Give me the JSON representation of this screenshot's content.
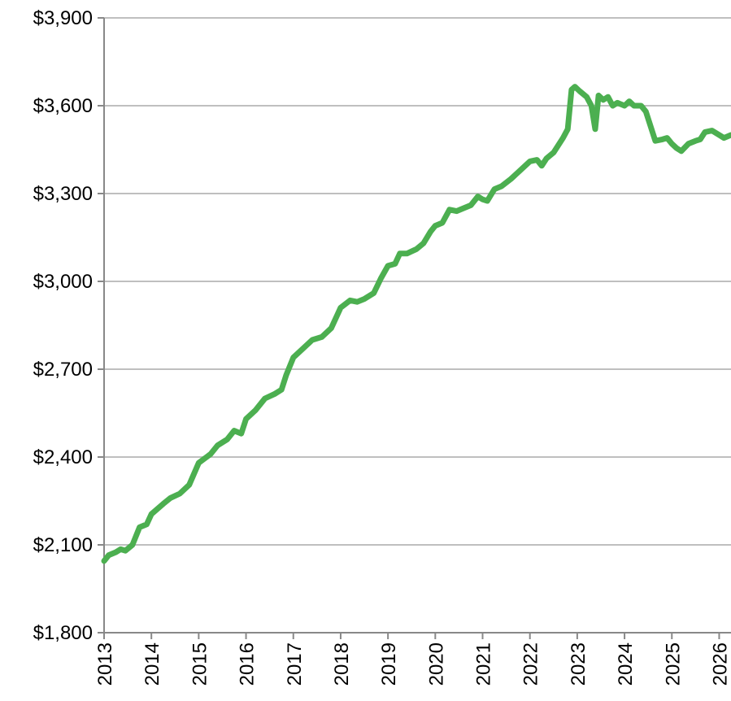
{
  "chart_data": {
    "type": "line",
    "color": "#4caf50",
    "x": [
      2013.0,
      2013.1,
      2013.25,
      2013.35,
      2013.45,
      2013.6,
      2013.75,
      2013.9,
      2014.0,
      2014.25,
      2014.4,
      2014.6,
      2014.8,
      2015.0,
      2015.25,
      2015.4,
      2015.6,
      2015.75,
      2015.9,
      2016.0,
      2016.2,
      2016.4,
      2016.6,
      2016.75,
      2016.85,
      2017.0,
      2017.2,
      2017.4,
      2017.6,
      2017.8,
      2018.0,
      2018.2,
      2018.35,
      2018.5,
      2018.7,
      2018.85,
      2019.0,
      2019.15,
      2019.25,
      2019.4,
      2019.6,
      2019.75,
      2019.9,
      2020.0,
      2020.15,
      2020.3,
      2020.45,
      2020.6,
      2020.75,
      2020.9,
      2021.0,
      2021.1,
      2021.25,
      2021.4,
      2021.6,
      2021.8,
      2022.0,
      2022.15,
      2022.25,
      2022.35,
      2022.5,
      2022.7,
      2022.8,
      2022.88,
      2022.95,
      2023.05,
      2023.2,
      2023.3,
      2023.38,
      2023.45,
      2023.55,
      2023.65,
      2023.75,
      2023.85,
      2024.0,
      2024.1,
      2024.2,
      2024.35,
      2024.45,
      2024.55,
      2024.65,
      2024.8,
      2024.9,
      2025.0,
      2025.1,
      2025.2,
      2025.35,
      2025.5,
      2025.6,
      2025.7,
      2025.85,
      2026.0,
      2026.1,
      2026.25
    ],
    "values": [
      2045,
      2065,
      2075,
      2085,
      2080,
      2100,
      2160,
      2170,
      2205,
      2240,
      2260,
      2275,
      2305,
      2380,
      2410,
      2440,
      2460,
      2490,
      2480,
      2530,
      2560,
      2600,
      2615,
      2630,
      2680,
      2740,
      2770,
      2800,
      2810,
      2840,
      2910,
      2935,
      2930,
      2940,
      2960,
      3010,
      3053,
      3060,
      3095,
      3095,
      3110,
      3130,
      3170,
      3190,
      3200,
      3245,
      3240,
      3250,
      3260,
      3290,
      3280,
      3275,
      3315,
      3325,
      3350,
      3380,
      3410,
      3415,
      3395,
      3420,
      3440,
      3490,
      3520,
      3655,
      3665,
      3650,
      3630,
      3600,
      3520,
      3635,
      3620,
      3630,
      3600,
      3610,
      3600,
      3615,
      3600,
      3600,
      3580,
      3530,
      3480,
      3485,
      3490,
      3470,
      3455,
      3445,
      3470,
      3480,
      3485,
      3510,
      3515,
      3500,
      3490,
      3500
    ],
    "xlim": [
      2013,
      2026.25
    ],
    "xticks": [
      2013,
      2014,
      2015,
      2016,
      2017,
      2018,
      2019,
      2020,
      2021,
      2022,
      2023,
      2024,
      2025,
      2026
    ],
    "ylim": [
      1800,
      3900
    ],
    "yticks": [
      {
        "value": 1800,
        "label": "$1,800"
      },
      {
        "value": 2100,
        "label": "$2,100"
      },
      {
        "value": 2400,
        "label": "$2,400"
      },
      {
        "value": 2700,
        "label": "$2,700"
      },
      {
        "value": 3000,
        "label": "$3,000"
      },
      {
        "value": 3300,
        "label": "$3,300"
      },
      {
        "value": 3600,
        "label": "$3,600"
      },
      {
        "value": 3900,
        "label": "$3,900"
      }
    ],
    "grid": true
  }
}
